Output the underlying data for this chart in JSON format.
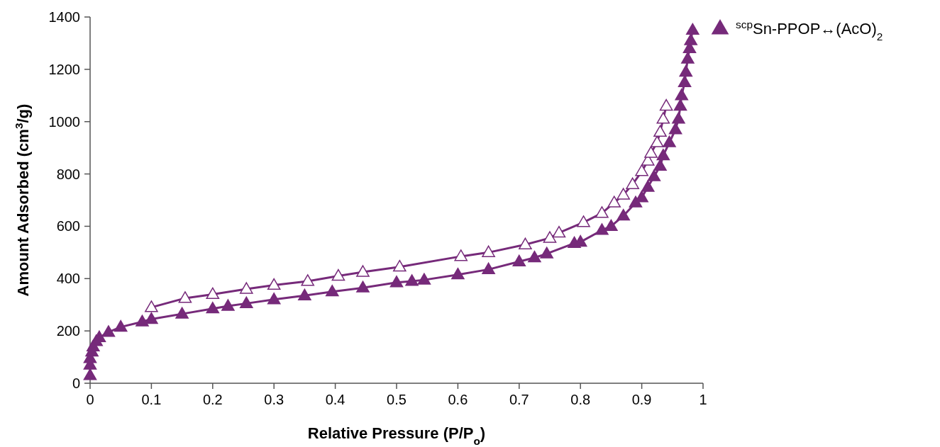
{
  "chart_data": {
    "type": "line",
    "xlabel": "Relative Pressure (P/P$_{o}$)",
    "ylabel": "Amount Adsorbed (cm$^{3}$/g)",
    "xlim": [
      0,
      1
    ],
    "ylim": [
      0,
      1400
    ],
    "xticks": [
      0,
      0.1,
      0.2,
      0.3,
      0.4,
      0.5,
      0.6,
      0.7,
      0.8,
      0.9,
      1
    ],
    "yticks": [
      0,
      200,
      400,
      600,
      800,
      1000,
      1200,
      1400
    ],
    "grid": false,
    "legend": "top right",
    "marker": "triangle",
    "line_style": "solid",
    "series": [
      {
        "name": "$^{scp}$Sn-PPOP↔(AcO)$_{2}$",
        "color": "#762a7a",
        "x": [
          0,
          0,
          0,
          0.003,
          0.005,
          0.01,
          0.015,
          0.03,
          0.05,
          0.085,
          0.1,
          0.15,
          0.2,
          0.225,
          0.255,
          0.3,
          0.35,
          0.395,
          0.445,
          0.5,
          0.525,
          0.545,
          0.6,
          0.65,
          0.7,
          0.725,
          0.745,
          0.79,
          0.8,
          0.835,
          0.85,
          0.87,
          0.89,
          0.9,
          0.91,
          0.92,
          0.93,
          0.935,
          0.945,
          0.955,
          0.96,
          0.963,
          0.965,
          0.97,
          0.972,
          0.975,
          0.978,
          0.98,
          0.983
        ],
        "values": [
          30,
          70,
          95,
          120,
          140,
          160,
          175,
          195,
          215,
          235,
          245,
          265,
          285,
          295,
          305,
          320,
          335,
          350,
          365,
          385,
          390,
          395,
          415,
          435,
          465,
          480,
          495,
          535,
          540,
          585,
          600,
          640,
          690,
          710,
          750,
          790,
          830,
          870,
          920,
          970,
          1010,
          1060,
          1100,
          1150,
          1190,
          1240,
          1280,
          1310,
          1350
        ]
      },
      {
        "color": "#762a7a",
        "x": [
          0.1,
          0.155,
          0.2,
          0.255,
          0.3,
          0.355,
          0.405,
          0.445,
          0.505,
          0.605,
          0.65,
          0.71,
          0.75,
          0.765,
          0.805,
          0.835,
          0.855,
          0.87,
          0.885,
          0.9,
          0.91,
          0.915,
          0.925,
          0.93,
          0.935,
          0.94
        ],
        "values": [
          290,
          325,
          340,
          360,
          375,
          390,
          410,
          425,
          445,
          485,
          500,
          530,
          555,
          575,
          615,
          650,
          690,
          720,
          760,
          810,
          850,
          880,
          920,
          960,
          1010,
          1060
        ]
      }
    ]
  }
}
